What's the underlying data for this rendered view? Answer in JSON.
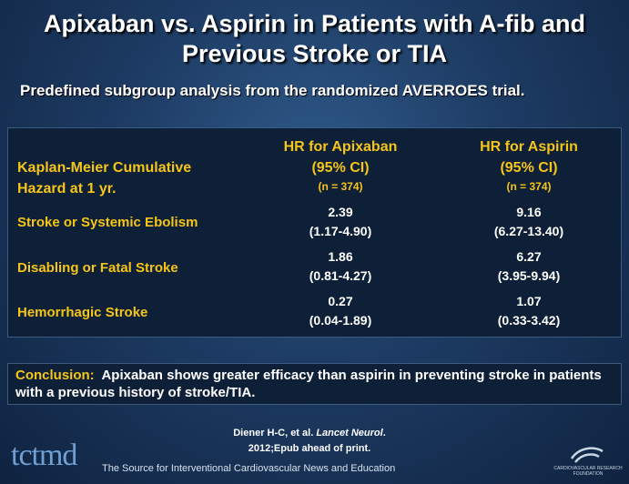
{
  "title_line1": "Apixaban vs. Aspirin in Patients with A-fib and",
  "title_line2": "Previous Stroke or TIA",
  "subtitle": "Predefined subgroup analysis from the randomized AVERROES trial.",
  "table": {
    "row_header": [
      "Kaplan-Meier Cumulative",
      "Hazard at 1 yr."
    ],
    "col_a": {
      "line1": "HR for Apixaban",
      "line2": "(95% CI)",
      "n": "(n = 374)"
    },
    "col_b": {
      "line1": "HR for Aspirin",
      "line2": "(95% CI)",
      "n": "(n = 374)"
    },
    "rows": [
      {
        "label": "Stroke or Systemic Ebolism",
        "a": "2.39",
        "a_ci": "(1.17-4.90)",
        "b": "9.16",
        "b_ci": "(6.27-13.40)"
      },
      {
        "label": "Disabling or Fatal Stroke",
        "a": "1.86",
        "a_ci": "(0.81-4.27)",
        "b": "6.27",
        "b_ci": "(3.95-9.94)"
      },
      {
        "label": "Hemorrhagic Stroke",
        "a": "0.27",
        "a_ci": "(0.04-1.89)",
        "b": "1.07",
        "b_ci": "(0.33-3.42)"
      }
    ]
  },
  "conclusion": {
    "lead": "Conclusion:",
    "body": "Apixaban shows greater efficacy than aspirin in preventing stroke in patients with a previous history of stroke/TIA."
  },
  "citation": {
    "authors": "Diener H-C, et al.",
    "journal": "Lancet Neurol",
    "line2": "2012;Epub ahead of print."
  },
  "footer": {
    "logo": "tctmd",
    "tagline": "The Source for Interventional Cardiovascular News and Education",
    "crf_line1": "CARDIOVASCULAR RESEARCH",
    "crf_line2": "FOUNDATION"
  },
  "colors": {
    "accent": "#f5c518",
    "background": "#1d3b63",
    "panel": "#0e1f38"
  },
  "icons": [
    "crf-logo-icon"
  ]
}
